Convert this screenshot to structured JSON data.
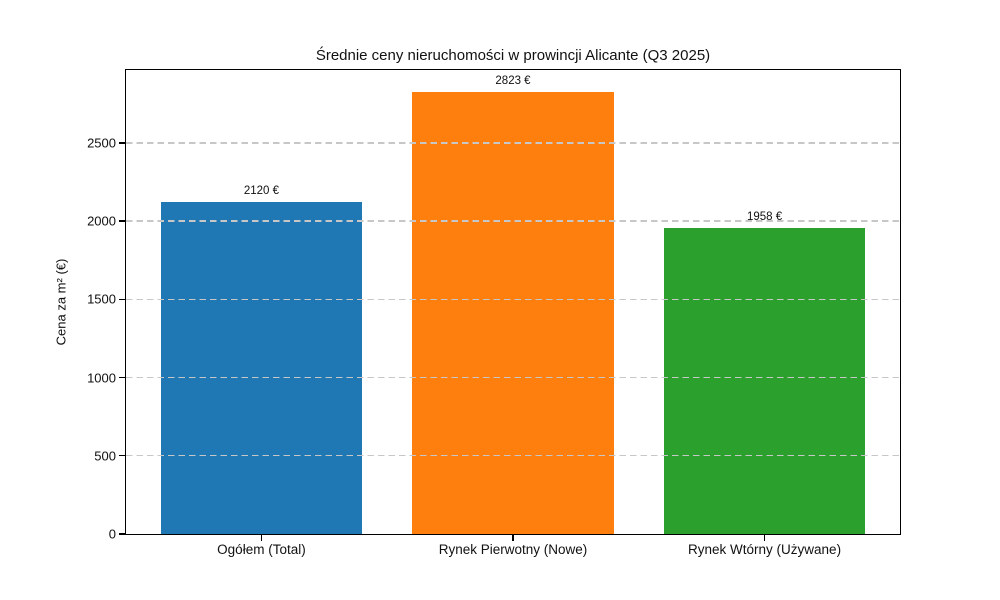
{
  "chart_data": {
    "type": "bar",
    "title": "Średnie ceny nieruchomości w prowincji Alicante (Q3 2025)",
    "ylabel": "Cena za m² (€)",
    "xlabel": "",
    "categories": [
      "Ogółem (Total)",
      "Rynek Pierwotny (Nowe)",
      "Rynek Wtórny (Używane)"
    ],
    "values": [
      2120,
      2823,
      1958
    ],
    "value_labels": [
      "2120 €",
      "2823 €",
      "1958 €"
    ],
    "bar_colors": [
      "#1f77b4",
      "#ff7f0e",
      "#2ca02c"
    ],
    "yticks": [
      0,
      500,
      1000,
      1500,
      2000,
      2500
    ],
    "ylim": [
      0,
      2966
    ],
    "grid": "horizontal-dashed-above-bars",
    "grid_color": "#c7c7c7",
    "axis_color": "#000000",
    "background": "#ffffff",
    "legend": "none",
    "bar_centers_frac": [
      0.175,
      0.5,
      0.825
    ],
    "bar_width_frac": 0.26
  }
}
